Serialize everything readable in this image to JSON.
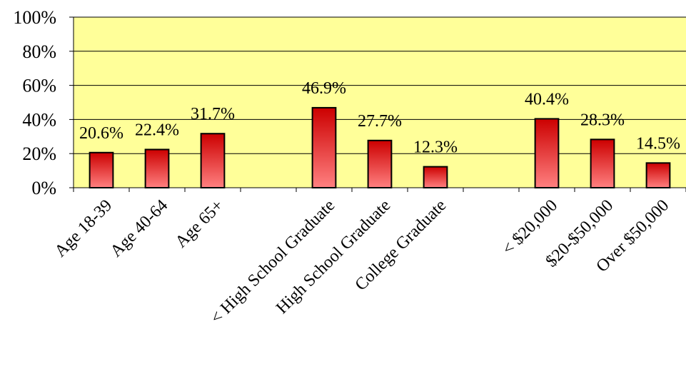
{
  "chart_data": {
    "type": "bar",
    "categories": [
      "Age 18-39",
      "Age 40-64",
      "Age 65+",
      "",
      "< High School Graduate",
      "High School Graduate",
      "College Graduate",
      "",
      "< $20,000",
      "$20-$50,000",
      "Over $50,000"
    ],
    "values": [
      20.6,
      22.4,
      31.7,
      null,
      46.9,
      27.7,
      12.3,
      null,
      40.4,
      28.3,
      14.5
    ],
    "data_labels": [
      "20.6%",
      "22.4%",
      "31.7%",
      "",
      "46.9%",
      "27.7%",
      "12.3%",
      "",
      "40.4%",
      "28.3%",
      "14.5%"
    ],
    "y_tick_labels": [
      "0%",
      "20%",
      "40%",
      "60%",
      "80%",
      "100%"
    ],
    "ylim": [
      0,
      100
    ],
    "grid": true,
    "legend": "none",
    "colors": {
      "plot_background": "#FFFF99",
      "bar_top": "#CC0000",
      "bar_bottom": "#FF8080",
      "bar_outline": "#000000",
      "gridline": "#000000"
    }
  }
}
